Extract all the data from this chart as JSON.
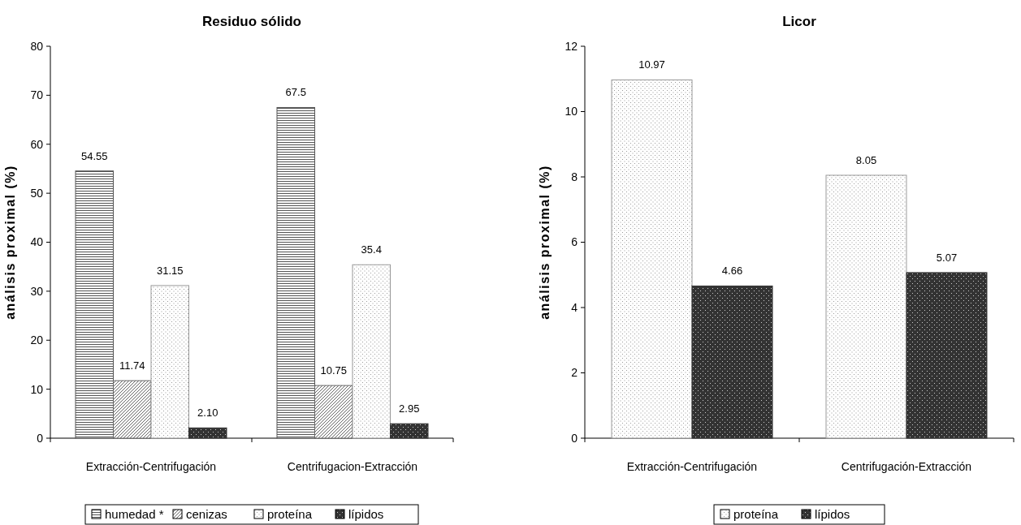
{
  "chart_data": [
    {
      "type": "bar",
      "title": "Residuo sólido",
      "ylabel": "análisis proximal  (%)",
      "categories": [
        "Extracción-Centrifugación",
        "Centrifugacion-Extracción"
      ],
      "series": [
        {
          "name": "humedad *",
          "color": "#555555",
          "values": [
            54.55,
            67.5
          ],
          "value_labels": [
            "54.55",
            "67.5"
          ]
        },
        {
          "name": "cenizas",
          "color": "#666666",
          "values": [
            11.74,
            10.75
          ],
          "value_labels": [
            "11.74",
            "10.75"
          ]
        },
        {
          "name": "proteína",
          "color": "#999999",
          "values": [
            31.15,
            35.4
          ],
          "value_labels": [
            "31.15",
            "35.4"
          ]
        },
        {
          "name": "lípidos",
          "color": "#333333",
          "values": [
            2.1,
            2.95
          ],
          "value_labels": [
            "2.10",
            "2.95"
          ]
        }
      ],
      "ylim": [
        0,
        80
      ],
      "yticks": [
        0,
        10,
        20,
        30,
        40,
        50,
        60,
        70,
        80
      ],
      "grid": false,
      "legend": "bottom"
    },
    {
      "type": "bar",
      "title": "Licor",
      "ylabel": "análisis proximal  (%)",
      "categories": [
        "Extracción-Centrifugación",
        "Centrifugación-Extracción"
      ],
      "series": [
        {
          "name": "proteína",
          "color": "#999999",
          "values": [
            10.97,
            8.05
          ],
          "value_labels": [
            "10.97",
            "8.05"
          ]
        },
        {
          "name": "lípidos",
          "color": "#333333",
          "values": [
            4.66,
            5.07
          ],
          "value_labels": [
            "4.66",
            "5.07"
          ]
        }
      ],
      "ylim": [
        0,
        12
      ],
      "yticks": [
        0,
        2,
        4,
        6,
        8,
        10,
        12
      ],
      "grid": false,
      "legend": "bottom"
    }
  ]
}
